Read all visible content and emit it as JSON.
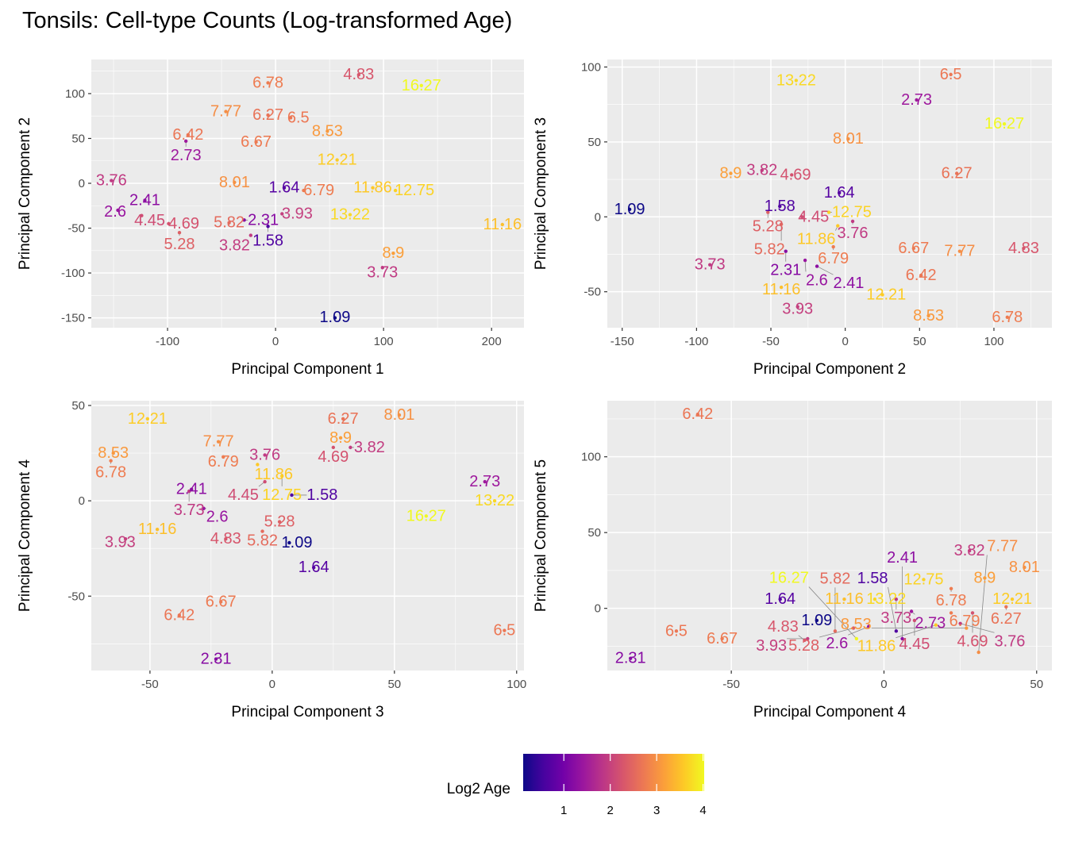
{
  "title": "Tonsils: Cell-type Counts (Log-transformed Age)",
  "legend": {
    "title": "Log2 Age",
    "ticks": [
      1,
      2,
      3,
      4
    ],
    "limits": [
      0.124,
      4.024
    ],
    "palette": "plasma",
    "colors": [
      "#0d0887",
      "#46039f",
      "#7201a8",
      "#9c179e",
      "#bd3786",
      "#d8576b",
      "#ed7953",
      "#fb9f3a",
      "#fdca26",
      "#f0f921"
    ]
  },
  "chart_data": [
    {
      "type": "scatter",
      "xlabel": "Principal Component 1",
      "ylabel": "Principal Component 2",
      "xlim": [
        -170.6,
        230
      ],
      "ylim": [
        -161,
        138
      ],
      "xticks": [
        -100,
        0,
        100,
        200
      ],
      "yticks": [
        -150,
        -100,
        -50,
        0,
        50,
        100
      ],
      "grid": true,
      "points": [
        {
          "label": "6.78",
          "x": -7,
          "y": 112
        },
        {
          "label": "4.83",
          "x": 77,
          "y": 121
        },
        {
          "label": "16.27",
          "x": 135,
          "y": 109
        },
        {
          "label": "7.77",
          "x": -46,
          "y": 80
        },
        {
          "label": "6.27",
          "x": -7,
          "y": 76
        },
        {
          "label": "6.5",
          "x": 14,
          "y": 73
        },
        {
          "label": "8.53",
          "x": 48,
          "y": 58
        },
        {
          "label": "6.42",
          "x": -81,
          "y": 54
        },
        {
          "label": "2.73",
          "x": -83,
          "y": 47
        },
        {
          "label": "6.67",
          "x": -18,
          "y": 46
        },
        {
          "label": "12.21",
          "x": 57,
          "y": 26
        },
        {
          "label": "3.76",
          "x": -152,
          "y": 3
        },
        {
          "label": "8.01",
          "x": -38,
          "y": 1
        },
        {
          "label": "1.64",
          "x": 8,
          "y": -5
        },
        {
          "label": "6.79",
          "x": 26,
          "y": -8
        },
        {
          "label": "11.86",
          "x": 90,
          "y": -5
        },
        {
          "label": "12.75",
          "x": 111,
          "y": -8
        },
        {
          "label": "2.41",
          "x": -121,
          "y": -19
        },
        {
          "label": "2.6",
          "x": -146,
          "y": -30
        },
        {
          "label": "4.45",
          "x": -124,
          "y": -36
        },
        {
          "label": "13.22",
          "x": 69,
          "y": -35
        },
        {
          "label": "11.16",
          "x": 210,
          "y": -46
        },
        {
          "label": "4.69",
          "x": -99,
          "y": -45
        },
        {
          "label": "5.28",
          "x": -89,
          "y": -55
        },
        {
          "label": "5.82",
          "x": -43,
          "y": -44
        },
        {
          "label": "2.31",
          "x": -29,
          "y": -41
        },
        {
          "label": "3.93",
          "x": 6,
          "y": -34
        },
        {
          "label": "1.58",
          "x": -7,
          "y": -48
        },
        {
          "label": "3.82",
          "x": -23,
          "y": -58
        },
        {
          "label": "8.9",
          "x": 109,
          "y": -78
        },
        {
          "label": "3.73",
          "x": 99,
          "y": -94
        },
        {
          "label": "1.09",
          "x": 55,
          "y": -150
        }
      ]
    },
    {
      "type": "scatter",
      "xlabel": "Principal Component 2",
      "ylabel": "Principal Component 3",
      "xlim": [
        -160,
        139
      ],
      "ylim": [
        -74,
        105
      ],
      "xticks": [
        -150,
        -100,
        -50,
        0,
        50,
        100
      ],
      "yticks": [
        -50,
        0,
        50,
        100
      ],
      "grid": true,
      "points": [
        {
          "label": "13.22",
          "x": -33,
          "y": 91
        },
        {
          "label": "6.5",
          "x": 71,
          "y": 95
        },
        {
          "label": "2.73",
          "x": 48,
          "y": 78
        },
        {
          "label": "16.27",
          "x": 107,
          "y": 62
        },
        {
          "label": "8.01",
          "x": 2,
          "y": 52
        },
        {
          "label": "8.9",
          "x": -77,
          "y": 29
        },
        {
          "label": "3.82",
          "x": -56,
          "y": 31
        },
        {
          "label": "4.69",
          "x": -36,
          "y": 28
        },
        {
          "label": "6.27",
          "x": 75,
          "y": 29
        },
        {
          "label": "1.64",
          "x": -4,
          "y": 16
        },
        {
          "label": "1.09",
          "x": -145,
          "y": 5
        },
        {
          "label": "1.58",
          "x": -44,
          "y": 7
        },
        {
          "label": "5.28",
          "x": -52,
          "y": 3
        },
        {
          "label": "4.45",
          "x": -29,
          "y": 0
        },
        {
          "label": "12.75",
          "x": -11,
          "y": 3
        },
        {
          "label": "3.76",
          "x": 5,
          "y": -3
        },
        {
          "label": "11.86",
          "x": -5,
          "y": -6
        },
        {
          "label": "5.82",
          "x": -43,
          "y": -5
        },
        {
          "label": "6.79",
          "x": -8,
          "y": -20
        },
        {
          "label": "2.31",
          "x": -40,
          "y": -23
        },
        {
          "label": "2.6",
          "x": -27,
          "y": -29
        },
        {
          "label": "2.41",
          "x": -19,
          "y": -33
        },
        {
          "label": "3.73",
          "x": -91,
          "y": -32
        },
        {
          "label": "6.67",
          "x": 46,
          "y": -21
        },
        {
          "label": "7.77",
          "x": 77,
          "y": -23
        },
        {
          "label": "4.83",
          "x": 120,
          "y": -21
        },
        {
          "label": "6.42",
          "x": 51,
          "y": -39
        },
        {
          "label": "11.16",
          "x": -43,
          "y": -47
        },
        {
          "label": "12.21",
          "x": 25,
          "y": -52
        },
        {
          "label": "3.93",
          "x": -32,
          "y": -60
        },
        {
          "label": "8.53",
          "x": 56,
          "y": -66
        },
        {
          "label": "6.78",
          "x": 109,
          "y": -67
        }
      ]
    },
    {
      "type": "scatter",
      "xlabel": "Principal Component 3",
      "ylabel": "Principal Component 4",
      "xlim": [
        -74,
        103
      ],
      "ylim": [
        -89,
        52.5
      ],
      "xticks": [
        -50,
        0,
        50,
        100
      ],
      "yticks": [
        -50,
        0,
        50
      ],
      "grid": true,
      "points": [
        {
          "label": "12.21",
          "x": -51,
          "y": 43
        },
        {
          "label": "8.53",
          "x": -65,
          "y": 25
        },
        {
          "label": "6.78",
          "x": -66,
          "y": 21
        },
        {
          "label": "7.77",
          "x": -22,
          "y": 31
        },
        {
          "label": "6.79",
          "x": -20,
          "y": 23
        },
        {
          "label": "3.76",
          "x": -3,
          "y": 24
        },
        {
          "label": "11.86",
          "x": -6,
          "y": 19
        },
        {
          "label": "12.75",
          "x": 4,
          "y": 13
        },
        {
          "label": "4.45",
          "x": -3,
          "y": 10
        },
        {
          "label": "1.58",
          "x": 8,
          "y": 3
        },
        {
          "label": "6.27",
          "x": 29,
          "y": 43
        },
        {
          "label": "8.01",
          "x": 52,
          "y": 45
        },
        {
          "label": "8.9",
          "x": 28,
          "y": 33
        },
        {
          "label": "4.69",
          "x": 25,
          "y": 28
        },
        {
          "label": "3.82",
          "x": 32,
          "y": 28
        },
        {
          "label": "2.41",
          "x": -33,
          "y": 6
        },
        {
          "label": "3.73",
          "x": -34,
          "y": 5
        },
        {
          "label": "2.6",
          "x": -28,
          "y": -4
        },
        {
          "label": "2.73",
          "x": 87,
          "y": 10
        },
        {
          "label": "13.22",
          "x": 91,
          "y": 0
        },
        {
          "label": "16.27",
          "x": 63,
          "y": -8
        },
        {
          "label": "11.16",
          "x": -47,
          "y": -15
        },
        {
          "label": "3.93",
          "x": -60,
          "y": -20
        },
        {
          "label": "4.83",
          "x": -19,
          "y": -20
        },
        {
          "label": "5.28",
          "x": 3,
          "y": -11
        },
        {
          "label": "5.82",
          "x": -4,
          "y": -16
        },
        {
          "label": "1.09",
          "x": 7,
          "y": -22
        },
        {
          "label": "1.64",
          "x": 17,
          "y": -35
        },
        {
          "label": "6.67",
          "x": -21,
          "y": -53
        },
        {
          "label": "6.42",
          "x": -38,
          "y": -60
        },
        {
          "label": "6.5",
          "x": 95,
          "y": -68
        },
        {
          "label": "2.31",
          "x": -23,
          "y": -83
        }
      ]
    },
    {
      "type": "scatter",
      "xlabel": "Principal Component 4",
      "ylabel": "Principal Component 5",
      "xlim": [
        -90.6,
        55
      ],
      "ylim": [
        -41,
        137
      ],
      "xticks": [
        -50,
        0,
        50
      ],
      "yticks": [
        0,
        50,
        100
      ],
      "grid": true,
      "points": [
        {
          "label": "6.42",
          "x": -61,
          "y": 128
        },
        {
          "label": "3.82",
          "x": 28,
          "y": 38
        },
        {
          "label": "8.01",
          "x": 46,
          "y": 27
        },
        {
          "label": "8.9",
          "x": 33,
          "y": 20
        },
        {
          "label": "12.75",
          "x": 13,
          "y": 19
        },
        {
          "label": "6.78",
          "x": 22,
          "y": 13
        },
        {
          "label": "12.21",
          "x": 42,
          "y": 6
        },
        {
          "label": "6.27",
          "x": 40,
          "y": 1
        },
        {
          "label": "1.64",
          "x": -34,
          "y": 6
        },
        {
          "label": "11.16",
          "x": -13,
          "y": 6
        },
        {
          "label": "13.22",
          "x": -3,
          "y": 6
        },
        {
          "label": "3.73",
          "x": 4,
          "y": 6
        },
        {
          "label": "2.73",
          "x": 9,
          "y": -2
        },
        {
          "label": "6.79",
          "x": 22,
          "y": -3
        },
        {
          "label": "4.69",
          "x": 29,
          "y": -3
        },
        {
          "label": "4.45",
          "x": 10,
          "y": -8
        },
        {
          "label": "11.86",
          "x": 17,
          "y": -11
        },
        {
          "label": "3.76",
          "x": 25,
          "y": -10
        },
        {
          "label": "8.53",
          "x": 27,
          "y": -13
        },
        {
          "label": "1.09",
          "x": -22,
          "y": -8
        },
        {
          "label": "2.6",
          "x": -5,
          "y": -12
        },
        {
          "label": "5.28",
          "x": -10,
          "y": -13
        },
        {
          "label": "1.58",
          "x": 4,
          "y": -15
        },
        {
          "label": "4.83",
          "x": -26,
          "y": -21
        },
        {
          "label": "3.93",
          "x": -25,
          "y": -20
        },
        {
          "label": "5.82",
          "x": -16,
          "y": -15
        },
        {
          "label": "16.27",
          "x": -9,
          "y": -20
        },
        {
          "label": "2.41",
          "x": 6,
          "y": -20
        },
        {
          "label": "6.5",
          "x": -68,
          "y": -15
        },
        {
          "label": "6.67",
          "x": -53,
          "y": -20
        },
        {
          "label": "7.77",
          "x": 31,
          "y": -29
        },
        {
          "label": "2.31",
          "x": -83,
          "y": -33
        }
      ]
    }
  ]
}
